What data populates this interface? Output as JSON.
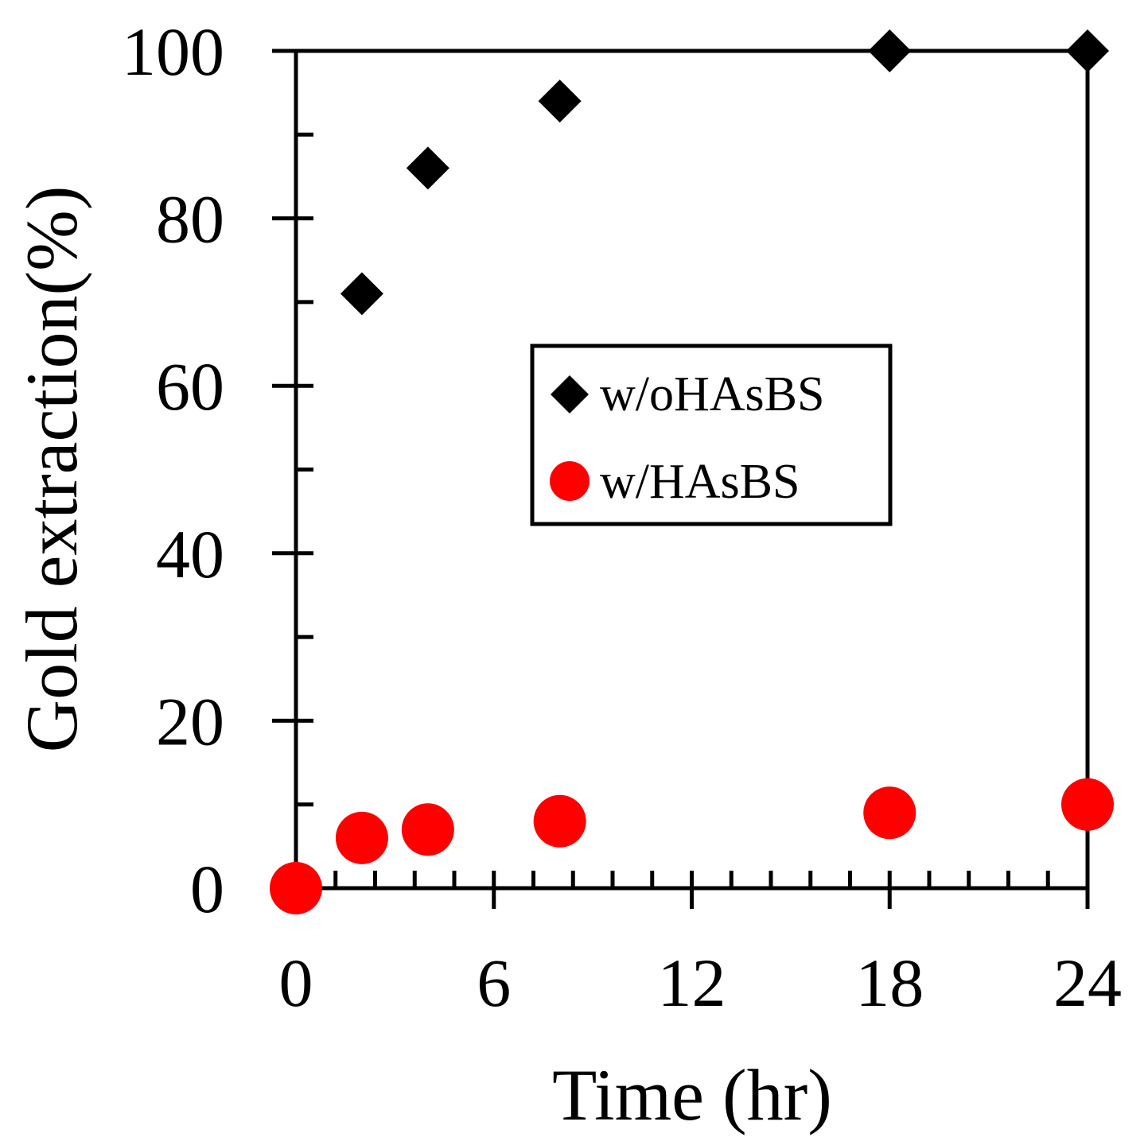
{
  "chart_data": {
    "type": "scatter",
    "title": "",
    "xlabel": "Time (hr)",
    "ylabel": "Gold extraction(%)",
    "xlim": [
      0,
      24
    ],
    "ylim": [
      0,
      100
    ],
    "x_ticks": [
      0,
      6,
      12,
      18,
      24
    ],
    "x_tick_labels": [
      "0",
      "6",
      "12",
      "18",
      "24"
    ],
    "x_minor_step": 1.2,
    "y_ticks": [
      0,
      20,
      40,
      60,
      80,
      100
    ],
    "y_tick_labels": [
      "0",
      "20",
      "40",
      "60",
      "80",
      "100"
    ],
    "y_minor_step": 10,
    "grid": false,
    "legend_position": "center-right",
    "series": [
      {
        "name": "w/oHAsBS",
        "marker": "diamond",
        "color": "#000000",
        "x": [
          2,
          4,
          8,
          18,
          24
        ],
        "y": [
          71,
          86,
          94,
          100,
          100
        ]
      },
      {
        "name": "w/HAsBS",
        "marker": "circle",
        "color": "#ff0000",
        "x": [
          0,
          2,
          4,
          8,
          18,
          24
        ],
        "y": [
          0,
          6,
          7,
          8,
          9,
          10
        ]
      }
    ]
  }
}
